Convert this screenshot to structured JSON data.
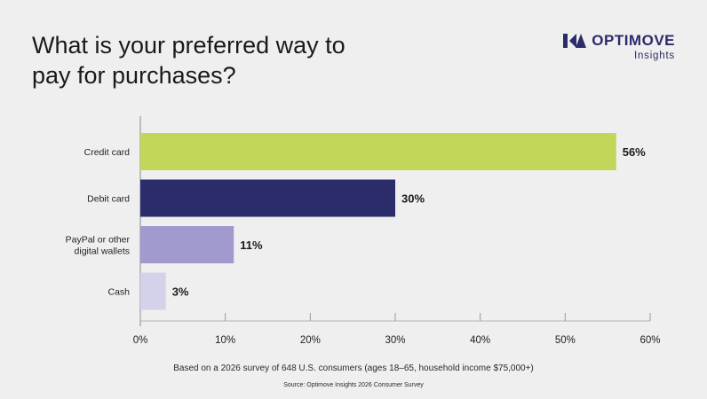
{
  "header": {
    "title_line1": "What is your preferred way to",
    "title_line2": "pay for purchases?"
  },
  "brand": {
    "logo_icon": "optimove-logo-icon",
    "name": "OPTIMOVE",
    "sub": "Insights",
    "color": "#2b2c6a"
  },
  "chart_data": {
    "type": "bar",
    "orientation": "horizontal",
    "title": "What is your preferred way to pay for purchases?",
    "categories": [
      "Credit card",
      "Debit card",
      "PayPal or other digital wallets",
      "Cash"
    ],
    "category_lines": [
      [
        "Credit card"
      ],
      [
        "Debit card"
      ],
      [
        "PayPal or other",
        "digital wallets"
      ],
      [
        "Cash"
      ]
    ],
    "values": [
      56,
      30,
      11,
      3
    ],
    "value_labels": [
      "56%",
      "30%",
      "11%",
      "3%"
    ],
    "colors": [
      "#c2d65a",
      "#2b2c6a",
      "#a19ace",
      "#d4d1ea"
    ],
    "xlim": [
      0,
      60
    ],
    "xticks": [
      0,
      10,
      20,
      30,
      40,
      50,
      60
    ],
    "xtick_labels": [
      "0%",
      "10%",
      "20%",
      "30%",
      "40%",
      "50%",
      "60%"
    ],
    "xlabel": "",
    "ylabel": "",
    "grid": false
  },
  "footer": {
    "note": "Based on a 2026 survey of 648 U.S. consumers (ages 18–65, household income $75,000+)",
    "source": "Source: Optimove Insights 2026 Consumer Survey"
  }
}
